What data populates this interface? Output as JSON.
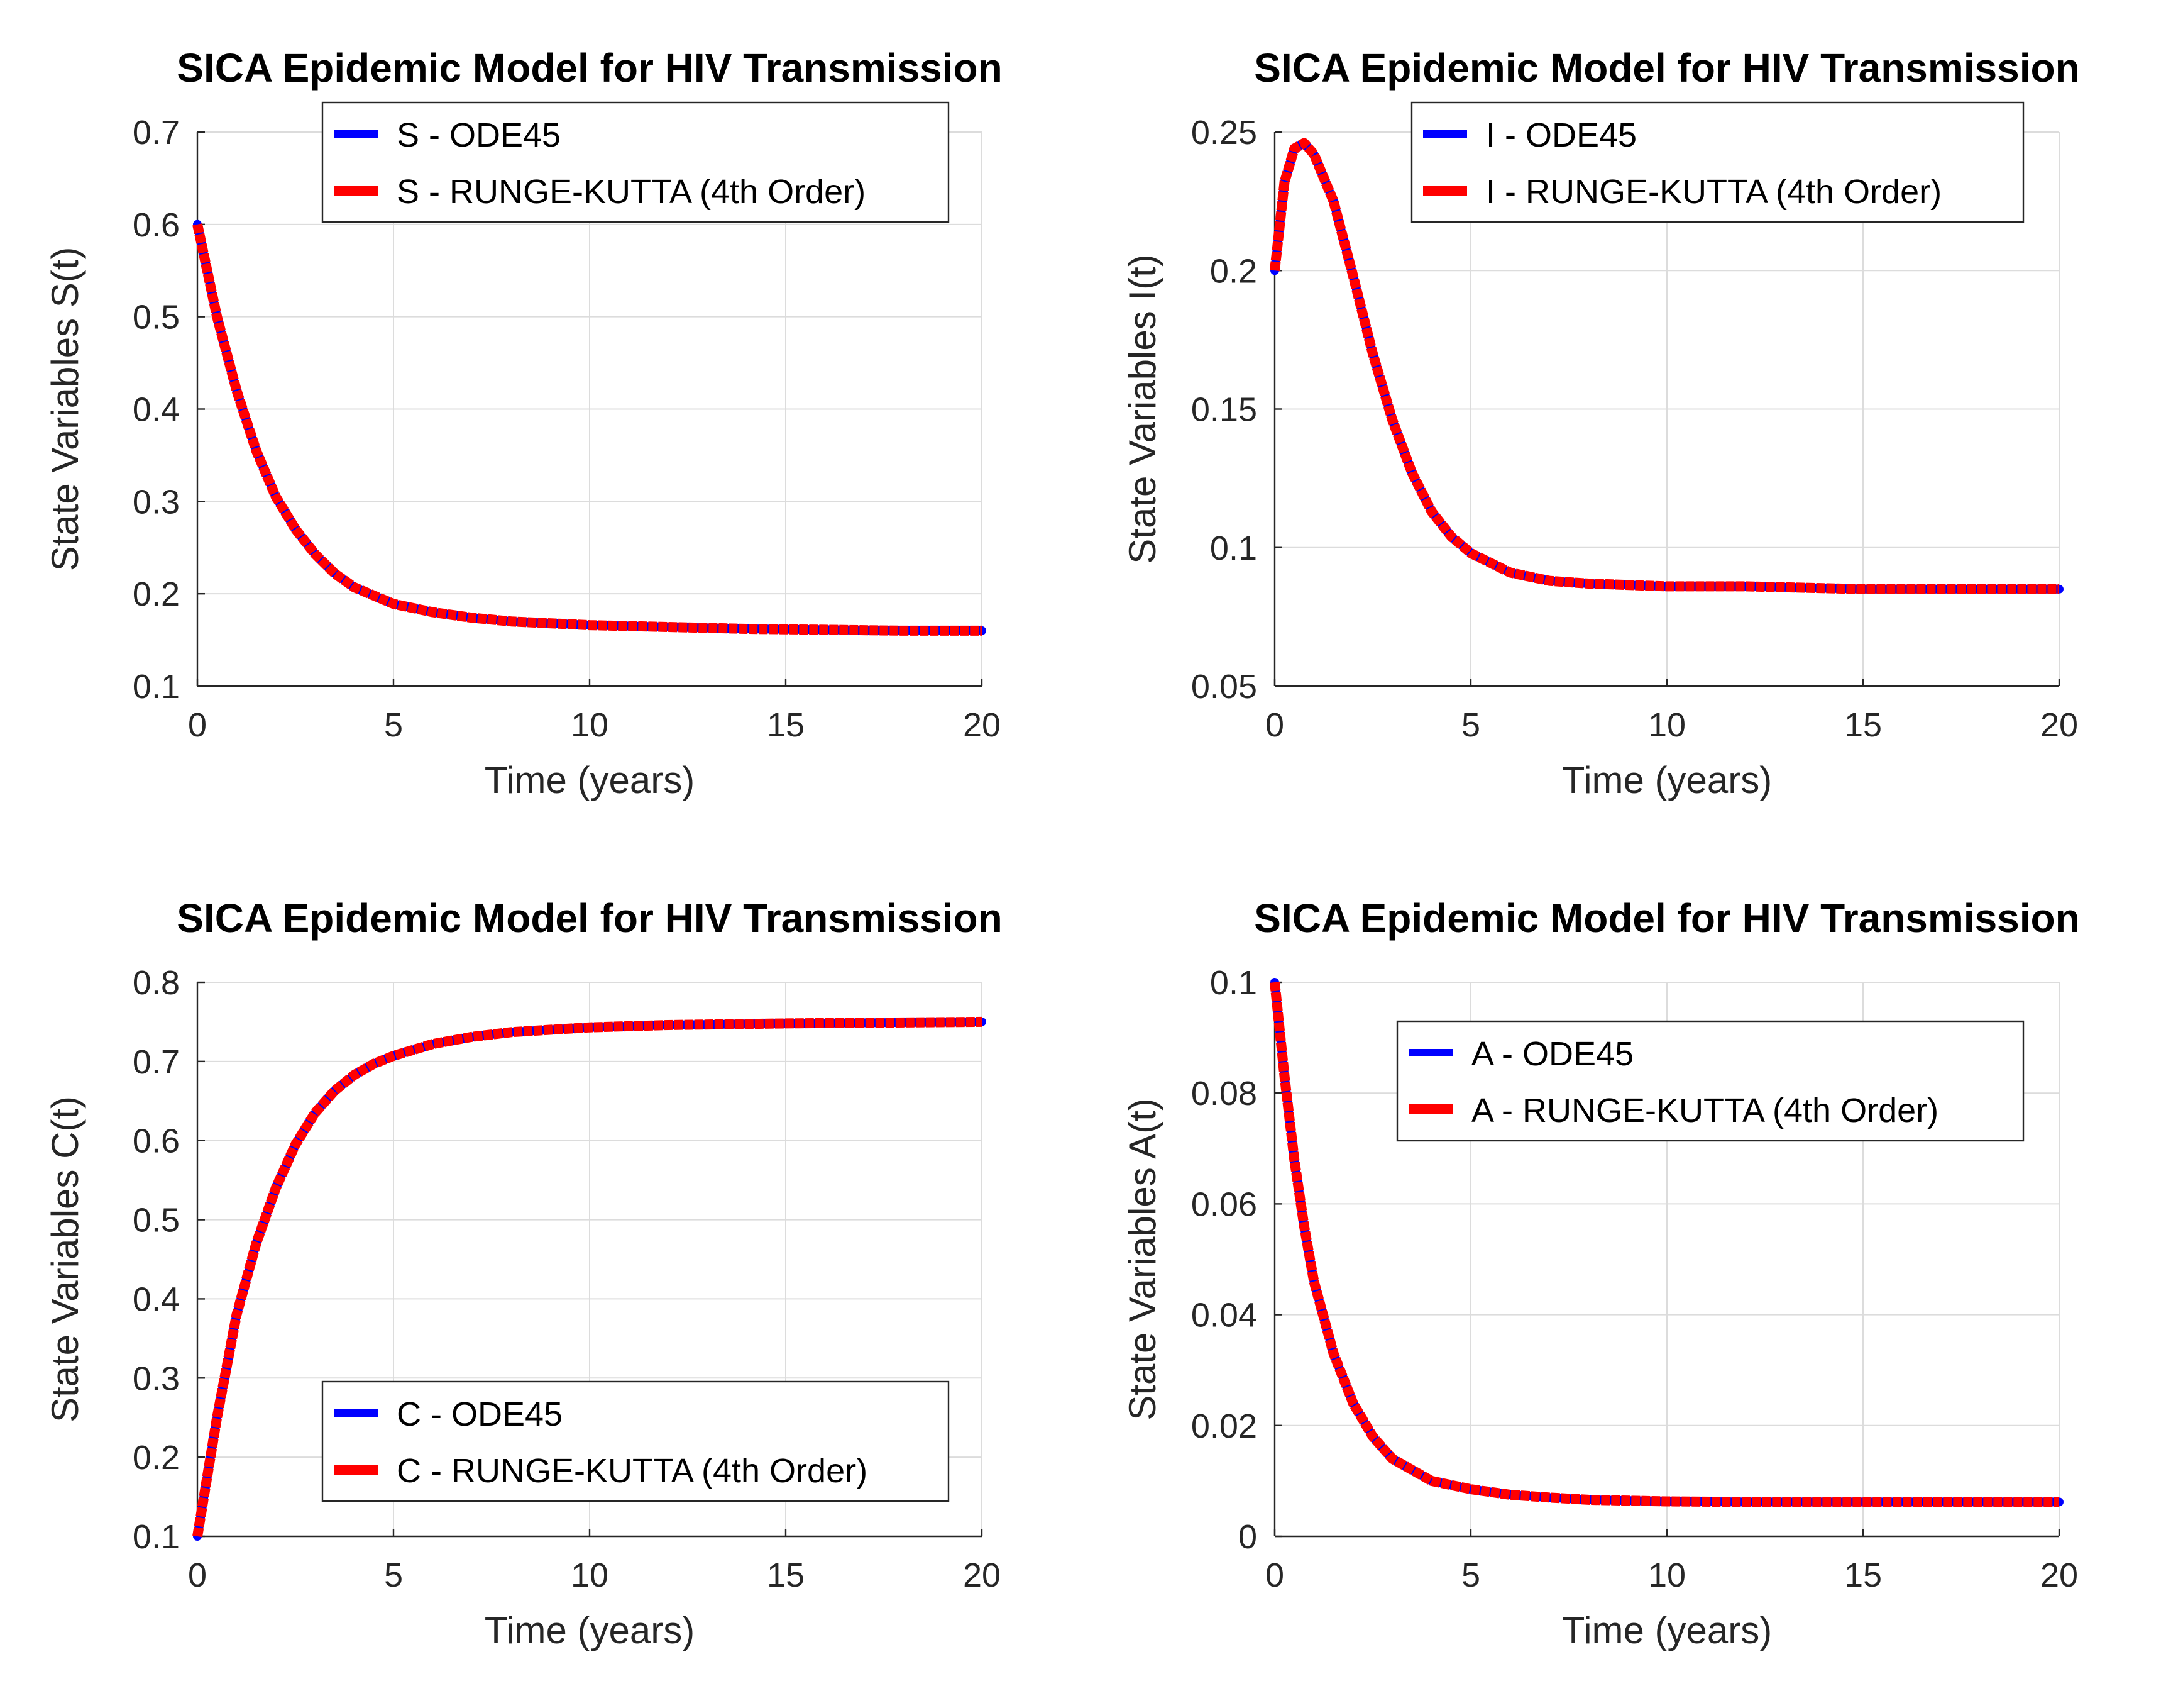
{
  "figure": {
    "background": "#ffffff"
  },
  "colors": {
    "ode45": "#0000ff",
    "rk4": "#ff0000",
    "grid": "#dcdcdc",
    "axis": "#262626"
  },
  "chart_data": [
    {
      "id": "S",
      "type": "line",
      "title": "SICA Epidemic Model for HIV Transmission",
      "xlabel": "Time (years)",
      "ylabel": "State Variables S(t)",
      "xlim": [
        0,
        20
      ],
      "ylim": [
        0.1,
        0.7
      ],
      "xticks": [
        0,
        5,
        10,
        15,
        20
      ],
      "xtick_labels": [
        "0",
        "5",
        "10",
        "15",
        "20"
      ],
      "yticks": [
        0.1,
        0.2,
        0.3,
        0.4,
        0.5,
        0.6,
        0.7
      ],
      "ytick_labels": [
        "0.1",
        "0.2",
        "0.3",
        "0.4",
        "0.5",
        "0.6",
        "0.7"
      ],
      "grid": true,
      "legend_position": "top-center",
      "x": [
        0,
        0.5,
        1,
        1.5,
        2,
        2.5,
        3,
        3.5,
        4,
        5,
        6,
        7,
        8,
        10,
        12,
        14,
        16,
        18,
        20
      ],
      "series": [
        {
          "name": "S - ODE45",
          "color": "#0000ff",
          "values": [
            0.6,
            0.5,
            0.42,
            0.355,
            0.305,
            0.27,
            0.243,
            0.222,
            0.207,
            0.189,
            0.18,
            0.174,
            0.17,
            0.166,
            0.164,
            0.162,
            0.161,
            0.16,
            0.16
          ]
        },
        {
          "name": "S - RUNGE-KUTTA (4th Order)",
          "color": "#ff0000",
          "values": [
            0.6,
            0.5,
            0.42,
            0.355,
            0.305,
            0.27,
            0.243,
            0.222,
            0.207,
            0.189,
            0.18,
            0.174,
            0.17,
            0.166,
            0.164,
            0.162,
            0.161,
            0.16,
            0.16
          ]
        }
      ]
    },
    {
      "id": "I",
      "type": "line",
      "title": "SICA Epidemic Model for HIV Transmission",
      "xlabel": "Time (years)",
      "ylabel": "State Variables I(t)",
      "xlim": [
        0,
        20
      ],
      "ylim": [
        0.05,
        0.25
      ],
      "xticks": [
        0,
        5,
        10,
        15,
        20
      ],
      "xtick_labels": [
        "0",
        "5",
        "10",
        "15",
        "20"
      ],
      "yticks": [
        0.05,
        0.1,
        0.15,
        0.2,
        0.25
      ],
      "ytick_labels": [
        "0.05",
        "0.1",
        "0.15",
        "0.2",
        "0.25"
      ],
      "grid": true,
      "legend_position": "top-right",
      "x": [
        0,
        0.25,
        0.5,
        0.75,
        1,
        1.5,
        2,
        2.5,
        3,
        3.5,
        4,
        4.5,
        5,
        6,
        7,
        8,
        10,
        12,
        15,
        20
      ],
      "series": [
        {
          "name": "I - ODE45",
          "color": "#0000ff",
          "values": [
            0.2,
            0.232,
            0.244,
            0.246,
            0.242,
            0.225,
            0.198,
            0.17,
            0.146,
            0.127,
            0.113,
            0.104,
            0.098,
            0.091,
            0.088,
            0.087,
            0.086,
            0.086,
            0.085,
            0.085
          ]
        },
        {
          "name": "I - RUNGE-KUTTA (4th Order)",
          "color": "#ff0000",
          "values": [
            0.2,
            0.232,
            0.244,
            0.246,
            0.242,
            0.225,
            0.198,
            0.17,
            0.146,
            0.127,
            0.113,
            0.104,
            0.098,
            0.091,
            0.088,
            0.087,
            0.086,
            0.086,
            0.085,
            0.085
          ]
        }
      ]
    },
    {
      "id": "C",
      "type": "line",
      "title": "SICA Epidemic Model for HIV Transmission",
      "xlabel": "Time (years)",
      "ylabel": "State Variables C(t)",
      "xlim": [
        0,
        20
      ],
      "ylim": [
        0.1,
        0.8
      ],
      "xticks": [
        0,
        5,
        10,
        15,
        20
      ],
      "xtick_labels": [
        "0",
        "5",
        "10",
        "15",
        "20"
      ],
      "yticks": [
        0.1,
        0.2,
        0.3,
        0.4,
        0.5,
        0.6,
        0.7,
        0.8
      ],
      "ytick_labels": [
        "0.1",
        "0.2",
        "0.3",
        "0.4",
        "0.5",
        "0.6",
        "0.7",
        "0.8"
      ],
      "grid": true,
      "legend_position": "bottom-center",
      "x": [
        0,
        0.5,
        1,
        1.5,
        2,
        2.5,
        3,
        3.5,
        4,
        4.5,
        5,
        6,
        7,
        8,
        10,
        12,
        15,
        20
      ],
      "series": [
        {
          "name": "C - ODE45",
          "color": "#0000ff",
          "values": [
            0.1,
            0.25,
            0.38,
            0.47,
            0.54,
            0.595,
            0.635,
            0.663,
            0.683,
            0.697,
            0.707,
            0.722,
            0.731,
            0.737,
            0.743,
            0.746,
            0.748,
            0.75
          ]
        },
        {
          "name": "C - RUNGE-KUTTA (4th Order)",
          "color": "#ff0000",
          "values": [
            0.1,
            0.25,
            0.38,
            0.47,
            0.54,
            0.595,
            0.635,
            0.663,
            0.683,
            0.697,
            0.707,
            0.722,
            0.731,
            0.737,
            0.743,
            0.746,
            0.748,
            0.75
          ]
        }
      ]
    },
    {
      "id": "A",
      "type": "line",
      "title": "SICA Epidemic Model for HIV Transmission",
      "xlabel": "Time (years)",
      "ylabel": "State Variables A(t)",
      "xlim": [
        0,
        20
      ],
      "ylim": [
        0,
        0.1
      ],
      "xticks": [
        0,
        5,
        10,
        15,
        20
      ],
      "xtick_labels": [
        "0",
        "5",
        "10",
        "15",
        "20"
      ],
      "yticks": [
        0,
        0.02,
        0.04,
        0.06,
        0.08,
        0.1
      ],
      "ytick_labels": [
        "0",
        "0.02",
        "0.04",
        "0.06",
        "0.08",
        "0.1"
      ],
      "grid": true,
      "legend_position": "top-right",
      "x": [
        0,
        0.25,
        0.5,
        0.75,
        1,
        1.5,
        2,
        2.5,
        3,
        3.5,
        4,
        5,
        6,
        7,
        8,
        10,
        12,
        15,
        20
      ],
      "series": [
        {
          "name": "A - ODE45",
          "color": "#0000ff",
          "values": [
            0.1,
            0.083,
            0.068,
            0.056,
            0.046,
            0.033,
            0.024,
            0.018,
            0.014,
            0.012,
            0.01,
            0.0085,
            0.0075,
            0.007,
            0.0066,
            0.0063,
            0.0062,
            0.0062,
            0.0062
          ]
        },
        {
          "name": "A - RUNGE-KUTTA (4th Order)",
          "color": "#ff0000",
          "values": [
            0.1,
            0.083,
            0.068,
            0.056,
            0.046,
            0.033,
            0.024,
            0.018,
            0.014,
            0.012,
            0.01,
            0.0085,
            0.0075,
            0.007,
            0.0066,
            0.0063,
            0.0062,
            0.0062,
            0.0062
          ]
        }
      ]
    }
  ]
}
